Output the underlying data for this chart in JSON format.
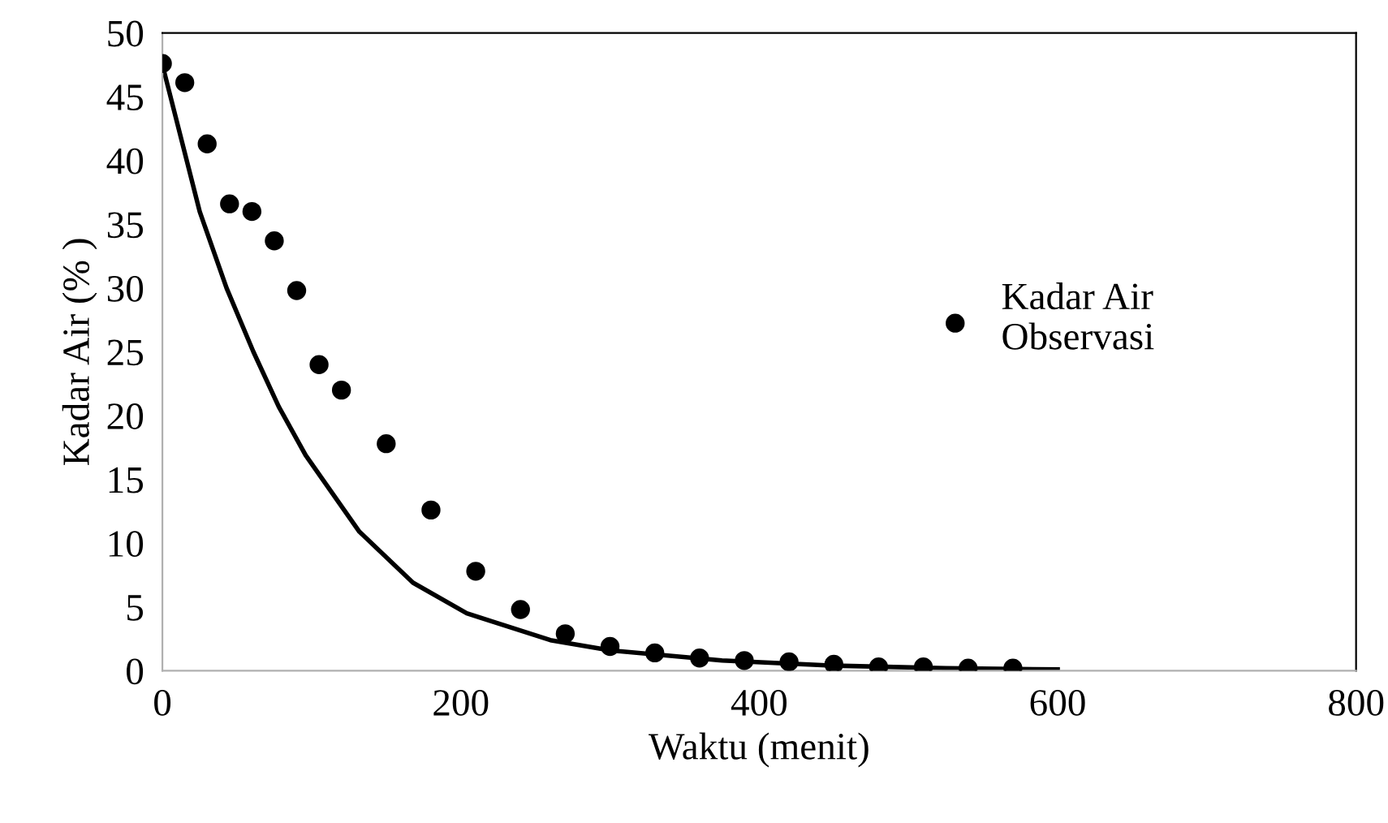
{
  "chart_data": {
    "type": "scatter",
    "xlabel": "Waktu (menit)",
    "ylabel": "Kadar Air (% )",
    "xlim": [
      0,
      800
    ],
    "ylim": [
      0,
      50
    ],
    "xticks": [
      0,
      200,
      400,
      600,
      800
    ],
    "yticks": [
      0,
      5,
      10,
      15,
      20,
      25,
      30,
      35,
      40,
      45,
      50
    ],
    "grid": false,
    "legend": "right",
    "series": [
      {
        "name": "Kadar Air\nObservasi",
        "marker": "circle",
        "color": "#000000",
        "x": [
          0,
          15,
          30,
          45,
          60,
          75,
          90,
          105,
          120,
          150,
          180,
          210,
          240,
          270,
          300,
          330,
          360,
          390,
          420,
          450,
          480,
          510,
          540,
          570
        ],
        "values": [
          47.6,
          46.1,
          41.3,
          36.6,
          36.0,
          33.7,
          29.8,
          24.0,
          22.0,
          17.8,
          12.6,
          7.8,
          4.8,
          2.9,
          1.9,
          1.4,
          1.0,
          0.8,
          0.7,
          0.5,
          0.3,
          0.3,
          0.2,
          0.2
        ]
      },
      {
        "type": "line",
        "color": "#000000",
        "line_style": "solid",
        "x": [
          0,
          25,
          43,
          61,
          78,
          96,
          132,
          168,
          204,
          260,
          300,
          375,
          450,
          525,
          600
        ],
        "values": [
          47.5,
          36,
          30,
          25,
          20.7,
          16.9,
          10.9,
          6.9,
          4.5,
          2.4,
          1.6,
          0.8,
          0.4,
          0.2,
          0.1
        ]
      }
    ]
  }
}
